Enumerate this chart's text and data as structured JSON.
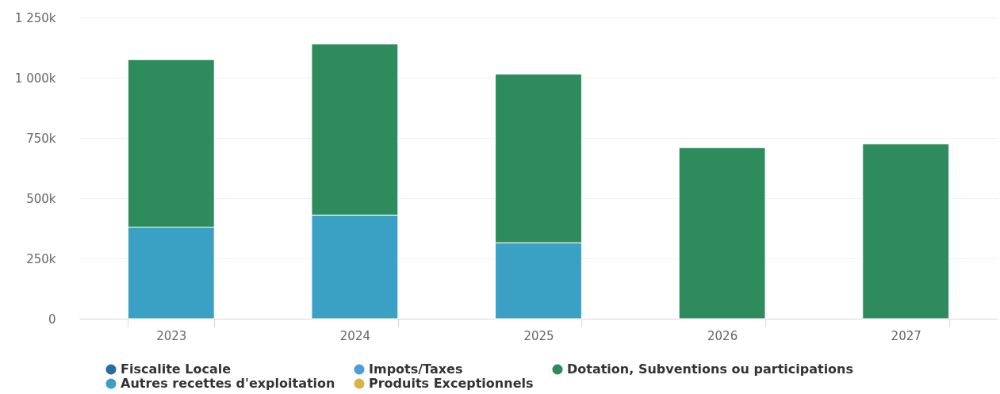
{
  "chart_data": {
    "type": "bar",
    "stacked": true,
    "categories": [
      "2023",
      "2024",
      "2025",
      "2026",
      "2027"
    ],
    "series": [
      {
        "name": "Produits Exceptionnels",
        "color": "#dcb246",
        "values": [
          null,
          null,
          null,
          null,
          null
        ]
      },
      {
        "name": "Autres recettes d'exploitation",
        "color": "#3aa0c4",
        "values": [
          380000,
          430000,
          315000,
          null,
          null
        ]
      },
      {
        "name": "Dotation, Subventions ou participations",
        "color": "#2e8b5b",
        "values": [
          695000,
          710000,
          700000,
          710000,
          725000
        ]
      },
      {
        "name": "Impots/Taxes",
        "color": "#4a9fd9",
        "values": [
          null,
          null,
          null,
          null,
          null
        ]
      },
      {
        "name": "Fiscalite Locale",
        "color": "#2a6ba3",
        "values": [
          null,
          null,
          null,
          null,
          null
        ]
      }
    ],
    "ylim": [
      0,
      1250000
    ],
    "yticks": [
      0,
      {
        "value": 250000,
        "label": "250k"
      },
      {
        "value": 500000,
        "label": "500k"
      },
      {
        "value": 750000,
        "label": "750k"
      },
      {
        "value": 1000000,
        "label": "1 000k"
      },
      {
        "value": 1250000,
        "label": "1 250k"
      }
    ],
    "grid": "y",
    "legend": "bottom"
  }
}
